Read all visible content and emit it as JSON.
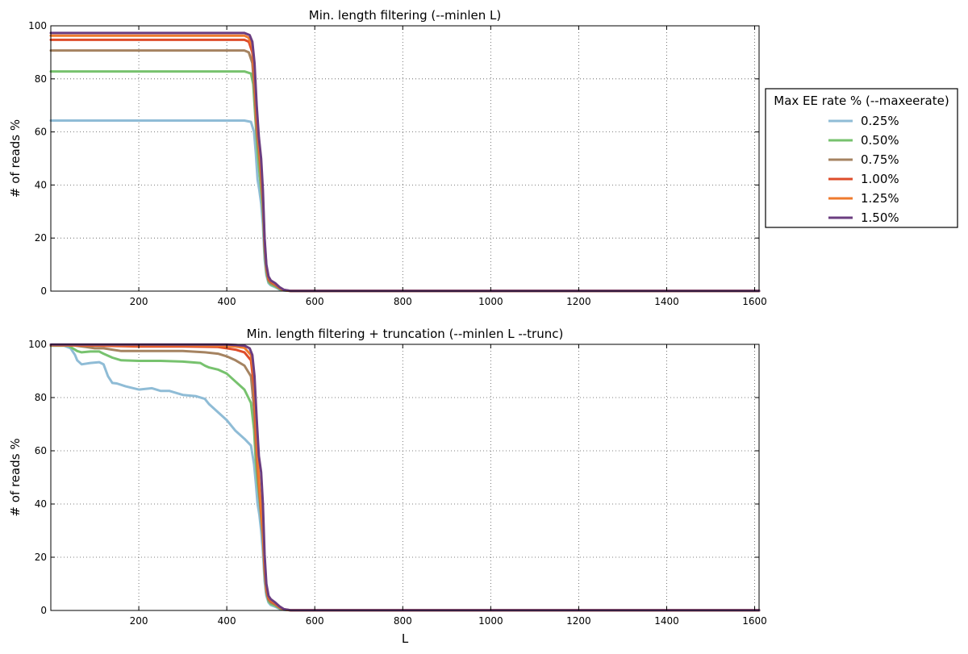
{
  "legend": {
    "title": "Max EE rate % (--maxeerate)",
    "placement": "right"
  },
  "chart_data": [
    {
      "type": "line",
      "title": "Min. length filtering (--minlen L)",
      "xlabel": "",
      "ylabel": "# of reads %",
      "xlim": [
        0,
        1610
      ],
      "ylim": [
        0,
        100
      ],
      "xticks": [
        200,
        400,
        600,
        800,
        1000,
        1200,
        1400,
        1600
      ],
      "yticks": [
        0,
        20,
        40,
        60,
        80,
        100
      ],
      "grid": true,
      "series": [
        {
          "name": "0.25%",
          "color": "#8fbcd6",
          "x": [
            0,
            440,
            455,
            462,
            466,
            470,
            474,
            478,
            482,
            486,
            490,
            495,
            500,
            510,
            520,
            530,
            545,
            560,
            600,
            1610
          ],
          "y": [
            64.3,
            64.3,
            63.8,
            60,
            52,
            42,
            38,
            33,
            25,
            12,
            6,
            3,
            2.2,
            1.5,
            0.6,
            0.2,
            0.1,
            0.1,
            0.1,
            0.1
          ]
        },
        {
          "name": "0.50%",
          "color": "#77c26e",
          "x": [
            0,
            440,
            455,
            460,
            465,
            470,
            474,
            478,
            482,
            486,
            490,
            495,
            500,
            510,
            520,
            530,
            545,
            560,
            600,
            1610
          ],
          "y": [
            82.8,
            82.8,
            82,
            78,
            65,
            52,
            45,
            38,
            30,
            15,
            7,
            3.5,
            2.5,
            1.8,
            0.8,
            0.3,
            0.1,
            0.1,
            0.1,
            0.1
          ]
        },
        {
          "name": "0.75%",
          "color": "#a58361",
          "x": [
            0,
            440,
            450,
            458,
            463,
            468,
            473,
            478,
            482,
            486,
            490,
            495,
            500,
            510,
            520,
            530,
            545,
            560,
            600,
            1610
          ],
          "y": [
            90.7,
            90.7,
            90,
            86,
            75,
            60,
            52,
            42,
            33,
            17,
            8,
            4,
            3,
            2.2,
            1,
            0.3,
            0.1,
            0.1,
            0.1,
            0.1
          ]
        },
        {
          "name": "1.00%",
          "color": "#de4c2a",
          "x": [
            0,
            440,
            450,
            458,
            463,
            468,
            473,
            478,
            482,
            486,
            490,
            495,
            500,
            510,
            520,
            530,
            545,
            560,
            600,
            1610
          ],
          "y": [
            94.7,
            94.7,
            94,
            90,
            80,
            64,
            55,
            44,
            34,
            18,
            9,
            4.5,
            3.5,
            2.5,
            1.2,
            0.4,
            0.1,
            0.1,
            0.1,
            0.1
          ]
        },
        {
          "name": "1.25%",
          "color": "#ef7a2d",
          "x": [
            0,
            440,
            450,
            458,
            463,
            468,
            473,
            478,
            482,
            486,
            490,
            495,
            500,
            510,
            520,
            530,
            545,
            560,
            600,
            1610
          ],
          "y": [
            96.3,
            96.3,
            95.5,
            92,
            82,
            66,
            56,
            45,
            35,
            19,
            9,
            5,
            3.8,
            2.7,
            1.3,
            0.4,
            0.1,
            0.1,
            0.1,
            0.1
          ]
        },
        {
          "name": "1.50%",
          "color": "#6b3d80",
          "x": [
            0,
            440,
            452,
            458,
            463,
            468,
            473,
            478,
            482,
            486,
            490,
            495,
            500,
            510,
            520,
            530,
            545,
            560,
            600,
            1610
          ],
          "y": [
            97.3,
            97.3,
            96.5,
            94,
            86,
            70,
            58,
            50,
            38,
            20,
            10,
            5.5,
            4,
            3,
            1.5,
            0.5,
            0.1,
            0.1,
            0.1,
            0.1
          ]
        }
      ]
    },
    {
      "type": "line",
      "title": "Min. length filtering + truncation (--minlen L --trunc)",
      "xlabel": "L",
      "ylabel": "# of reads %",
      "xlim": [
        0,
        1610
      ],
      "ylim": [
        0,
        100
      ],
      "xticks": [
        200,
        400,
        600,
        800,
        1000,
        1200,
        1400,
        1600
      ],
      "yticks": [
        0,
        20,
        40,
        60,
        80,
        100
      ],
      "grid": true,
      "series": [
        {
          "name": "0.25%",
          "color": "#8fbcd6",
          "x": [
            0,
            30,
            45,
            55,
            60,
            70,
            90,
            110,
            120,
            130,
            140,
            150,
            170,
            200,
            230,
            250,
            270,
            300,
            330,
            350,
            360,
            380,
            400,
            420,
            440,
            455,
            462,
            466,
            470,
            474,
            478,
            482,
            486,
            490,
            495,
            500,
            510,
            520,
            530,
            545,
            560,
            600,
            1610
          ],
          "y": [
            99.5,
            99.5,
            98.5,
            96,
            94,
            92.5,
            93,
            93.3,
            92.5,
            88,
            85.5,
            85.3,
            84.2,
            83,
            83.5,
            82.5,
            82.5,
            81,
            80.5,
            79.5,
            77.5,
            74.5,
            71.5,
            67.5,
            64.5,
            62,
            55,
            48,
            40,
            36,
            30,
            22,
            11,
            5.5,
            3,
            2,
            1.4,
            0.6,
            0.2,
            0.1,
            0.1,
            0.1,
            0.1
          ]
        },
        {
          "name": "0.50%",
          "color": "#77c26e",
          "x": [
            0,
            40,
            60,
            70,
            90,
            110,
            120,
            140,
            160,
            200,
            250,
            300,
            340,
            350,
            360,
            380,
            400,
            420,
            440,
            455,
            462,
            466,
            470,
            474,
            478,
            482,
            486,
            490,
            495,
            500,
            510,
            520,
            530,
            545,
            560,
            600,
            1610
          ],
          "y": [
            99.5,
            99.5,
            97.5,
            97,
            97.3,
            97.3,
            96.5,
            95,
            94,
            93.8,
            93.8,
            93.5,
            93,
            92,
            91.3,
            90.5,
            89,
            86,
            83,
            78,
            68,
            56,
            48,
            42,
            35,
            27,
            14,
            6.5,
            3.5,
            2.5,
            1.8,
            0.8,
            0.3,
            0.1,
            0.1,
            0.1,
            0.1
          ]
        },
        {
          "name": "0.75%",
          "color": "#a58361",
          "x": [
            0,
            50,
            80,
            100,
            120,
            140,
            160,
            200,
            250,
            300,
            350,
            380,
            400,
            420,
            440,
            455,
            462,
            466,
            470,
            474,
            478,
            482,
            486,
            490,
            495,
            500,
            510,
            520,
            530,
            545,
            560,
            600,
            1610
          ],
          "y": [
            99.6,
            99.6,
            99,
            98.5,
            98.5,
            98,
            97.5,
            97.5,
            97.5,
            97.5,
            97,
            96.5,
            95.5,
            94,
            92,
            88,
            76,
            62,
            52,
            44,
            36,
            28,
            15,
            7,
            4,
            3,
            2.2,
            1,
            0.3,
            0.1,
            0.1,
            0.1,
            0.1
          ]
        },
        {
          "name": "1.00%",
          "color": "#de4c2a",
          "x": [
            0,
            100,
            200,
            300,
            380,
            400,
            420,
            440,
            455,
            462,
            466,
            470,
            474,
            478,
            482,
            486,
            490,
            495,
            500,
            510,
            520,
            530,
            545,
            560,
            600,
            1610
          ],
          "y": [
            99.7,
            99.5,
            99.2,
            99.2,
            99,
            98.5,
            98,
            97,
            94,
            84,
            68,
            56,
            46,
            37,
            29,
            16,
            8,
            4.5,
            3.5,
            2.5,
            1.2,
            0.4,
            0.1,
            0.1,
            0.1,
            0.1
          ]
        },
        {
          "name": "1.25%",
          "color": "#ef7a2d",
          "x": [
            0,
            100,
            200,
            300,
            400,
            420,
            440,
            455,
            462,
            466,
            470,
            474,
            478,
            482,
            486,
            490,
            495,
            500,
            510,
            520,
            530,
            545,
            560,
            600,
            1610
          ],
          "y": [
            99.8,
            99.7,
            99.6,
            99.6,
            99.4,
            99.2,
            98.7,
            96,
            88,
            72,
            58,
            47,
            38,
            30,
            17,
            8.5,
            5,
            3.8,
            2.7,
            1.3,
            0.4,
            0.1,
            0.1,
            0.1,
            0.1
          ]
        },
        {
          "name": "1.50%",
          "color": "#6b3d80",
          "x": [
            0,
            100,
            200,
            300,
            400,
            420,
            440,
            452,
            458,
            463,
            468,
            473,
            478,
            482,
            486,
            490,
            495,
            500,
            510,
            520,
            530,
            545,
            560,
            600,
            1610
          ],
          "y": [
            99.9,
            99.9,
            99.9,
            99.9,
            99.9,
            99.8,
            99.5,
            98.5,
            96,
            88,
            72,
            58,
            52,
            40,
            21,
            10,
            5.5,
            4.2,
            3,
            1.5,
            0.5,
            0.1,
            0.1,
            0.1,
            0.1
          ]
        }
      ]
    }
  ]
}
